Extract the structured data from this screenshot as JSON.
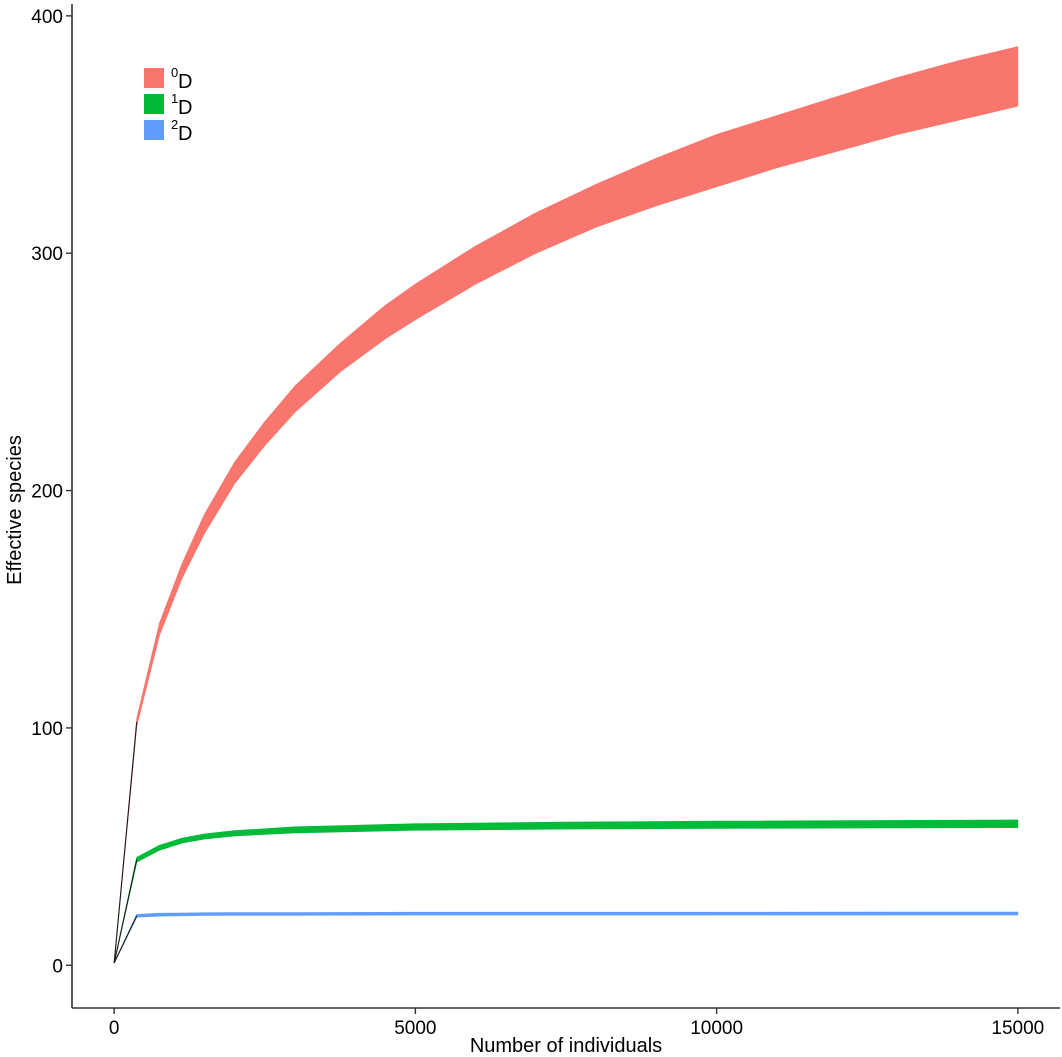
{
  "chart_data": {
    "type": "area",
    "xlabel": "Number of individuals",
    "ylabel": "Effective species",
    "xlim": [
      -700,
      15700
    ],
    "ylim": [
      -18,
      405
    ],
    "x_ticks": [
      0,
      5000,
      10000,
      15000
    ],
    "y_ticks": [
      0,
      100,
      200,
      300,
      400
    ],
    "x_tick_labels": [
      "0",
      "5000",
      "10000",
      "15000"
    ],
    "y_tick_labels": [
      "0",
      "100",
      "200",
      "300",
      "400"
    ],
    "grid": false,
    "legend_position": "top-left",
    "series": [
      {
        "name": "0D",
        "legend": {
          "sup": "0",
          "base": "D"
        },
        "color": "#f8766d",
        "x": [
          0,
          375,
          750,
          1125,
          1500,
          2000,
          2500,
          3000,
          3750,
          4500,
          5000,
          6000,
          7000,
          8000,
          9000,
          10000,
          11000,
          12000,
          13000,
          14000,
          15000
        ],
        "lower": [
          1,
          101,
          139,
          163,
          182,
          203,
          219,
          233,
          250,
          264,
          272,
          287,
          300,
          311,
          320,
          328,
          336,
          343,
          350,
          356,
          362
        ],
        "upper": [
          1,
          104,
          144,
          169,
          190,
          212,
          229,
          244,
          262,
          278,
          287,
          303,
          317,
          329,
          340,
          350,
          358,
          366,
          374,
          381,
          387
        ]
      },
      {
        "name": "1D",
        "legend": {
          "sup": "1",
          "base": "D"
        },
        "color": "#00ba38",
        "x": [
          0,
          375,
          750,
          1125,
          1500,
          2000,
          3000,
          5000,
          7500,
          10000,
          15000
        ],
        "lower": [
          1,
          43.5,
          48.5,
          51.5,
          53.2,
          54.5,
          55.8,
          56.9,
          57.4,
          57.7,
          58.0
        ],
        "upper": [
          1,
          45.5,
          50.5,
          53.5,
          55.3,
          56.7,
          58.3,
          59.6,
          60.3,
          60.7,
          61.2
        ]
      },
      {
        "name": "2D",
        "legend": {
          "sup": "2",
          "base": "D"
        },
        "color": "#619cff",
        "x": [
          0,
          375,
          750,
          1125,
          1500,
          2000,
          3000,
          5000,
          7500,
          10000,
          15000
        ],
        "lower": [
          1,
          20.3,
          20.7,
          20.9,
          21.0,
          21.1,
          21.1,
          21.2,
          21.2,
          21.2,
          21.2
        ],
        "upper": [
          1,
          21.4,
          21.9,
          22.0,
          22.1,
          22.2,
          22.2,
          22.3,
          22.3,
          22.3,
          22.4
        ]
      }
    ]
  }
}
